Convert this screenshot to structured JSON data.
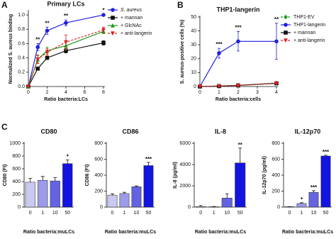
{
  "chart_data": [
    {
      "type": "line",
      "panel_label": "A",
      "title": "Primary LCs",
      "x_label": "Ratio bacteria:LCs",
      "y_label": "Normalized S. aureus binding",
      "x": [
        0,
        1,
        2,
        4,
        8
      ],
      "xlim": [
        0,
        8
      ],
      "xticks": [
        0,
        2,
        4,
        6,
        8
      ],
      "ylim": [
        0,
        1.05
      ],
      "yticks": [
        {
          "value": 0,
          "label": "0.0"
        },
        0.2,
        0.4,
        0.6,
        0.8,
        {
          "value": 1,
          "label": "1.0"
        }
      ],
      "significance": [
        null,
        "**",
        "**",
        "**",
        "*"
      ],
      "series": [
        {
          "name": "S. aureus",
          "color": "#1f1fe0",
          "marker": "circle",
          "dashed": false,
          "values": [
            0,
            0.55,
            0.78,
            0.89,
            1.0
          ],
          "errors": [
            0,
            0.05,
            0.05,
            0.04,
            0.01
          ]
        },
        {
          "name": "+ mannan",
          "color": "#111111",
          "marker": "square",
          "dashed": false,
          "values": [
            0,
            0.25,
            0.4,
            0.5,
            0.61
          ],
          "errors": [
            0,
            0.02,
            0.02,
            0.03,
            0.03
          ]
        },
        {
          "name": "+ GlcNAc",
          "color": "#1a9a1a",
          "marker": "triangle",
          "dashed": false,
          "values": [
            0,
            0.38,
            0.5,
            0.57,
            0.77
          ],
          "errors": [
            0,
            0.05,
            0.05,
            0.06,
            0.03
          ]
        },
        {
          "name": "+ anti-langerin",
          "color": "#e02020",
          "marker": "triangle-down",
          "dashed": true,
          "values": [
            0,
            0.38,
            0.48,
            0.62,
            0.79
          ],
          "errors": [
            0,
            0.06,
            0.05,
            0.1,
            0.04
          ]
        }
      ]
    },
    {
      "type": "line",
      "panel_label": "B",
      "title": "THP1-langerin",
      "x_label": "Ratio bacteria:cells",
      "y_label": "S. aureus-positive cells (%)",
      "x": [
        0,
        1,
        2,
        4
      ],
      "xlim": [
        0,
        4
      ],
      "xticks": [
        0,
        1,
        2,
        3,
        4
      ],
      "ylim": [
        0,
        50
      ],
      "yticks": [
        0,
        10,
        20,
        30,
        40,
        50
      ],
      "significance": [
        null,
        "***",
        "***",
        "**"
      ],
      "series": [
        {
          "name": "THP1-EV",
          "color": "#1a9a1a",
          "marker": "diamond",
          "dashed": true,
          "values": [
            0,
            0.4,
            0.9,
            2.6
          ],
          "errors": [
            0,
            0.2,
            0.3,
            0.4
          ]
        },
        {
          "name": "THP1-langerin",
          "color": "#1f1fe0",
          "marker": "circle",
          "dashed": false,
          "values": [
            0,
            24,
            32.5,
            32.5
          ],
          "errors": [
            0,
            3.5,
            7,
            13
          ]
        },
        {
          "name": "+ mannan",
          "color": "#111111",
          "marker": "square",
          "dashed": false,
          "values": [
            0,
            0.3,
            0.8,
            2.3
          ],
          "errors": [
            0,
            0.2,
            0.3,
            0.4
          ]
        },
        {
          "name": "+ anti-langerin",
          "color": "#e02020",
          "marker": "triangle-down",
          "dashed": true,
          "values": [
            0,
            0.3,
            0.7,
            2.4
          ],
          "errors": [
            0,
            0.2,
            0.3,
            0.4
          ]
        }
      ]
    },
    {
      "type": "bar",
      "panel_label": "C",
      "title": "CD80",
      "x_label": "Ratio bacteria:muLCs",
      "y_label": "CD80 (FI)",
      "categories": [
        "0",
        "1",
        "10",
        "50"
      ],
      "colors": [
        "#c9c9f2",
        "#9b9bea",
        "#6464e2",
        "#1414e0"
      ],
      "values": [
        390,
        420,
        410,
        680
      ],
      "errors": [
        60,
        60,
        50,
        60
      ],
      "significance": [
        null,
        null,
        null,
        "*"
      ],
      "ylim": [
        0,
        1000
      ],
      "yticks": [
        0,
        200,
        400,
        600,
        800,
        1000
      ]
    },
    {
      "type": "bar",
      "title": "CD86",
      "x_label": "Ratio bacteria:muLCs",
      "y_label": "CD86 (FI)",
      "categories": [
        "0",
        "1",
        "10",
        "50"
      ],
      "colors": [
        "#c9c9f2",
        "#9b9bea",
        "#6464e2",
        "#1414e0"
      ],
      "values": [
        150,
        170,
        255,
        520
      ],
      "errors": [
        15,
        15,
        10,
        40
      ],
      "significance": [
        null,
        null,
        null,
        "***"
      ],
      "ylim": [
        0,
        800
      ],
      "yticks": [
        0,
        200,
        400,
        600,
        800
      ]
    },
    {
      "type": "bar",
      "title": "IL-8",
      "x_label": "Ratio bacteria:muLCs",
      "y_label": "IL-8 (pg/ml)",
      "categories": [
        "0",
        "1",
        "10",
        "50"
      ],
      "colors": [
        "#c9c9f2",
        "#9b9bea",
        "#6464e2",
        "#1414e0"
      ],
      "values": [
        50,
        30,
        850,
        4150
      ],
      "errors": [
        100,
        30,
        400,
        1400
      ],
      "significance": [
        null,
        null,
        null,
        "**"
      ],
      "ylim": [
        0,
        6000
      ],
      "yticks": [
        0,
        2000,
        4000,
        6000
      ]
    },
    {
      "type": "bar",
      "title": "IL-12p70",
      "x_label": "Ratio bacteria:muLCs",
      "y_label": "IL-12p70 (pg/ml)",
      "categories": [
        "0",
        "1",
        "10",
        "50"
      ],
      "colors": [
        "#c9c9f2",
        "#9b9bea",
        "#6464e2",
        "#1414e0"
      ],
      "values": [
        5,
        45,
        185,
        640
      ],
      "errors": [
        2,
        10,
        20,
        10
      ],
      "significance": [
        null,
        "*",
        "***",
        "***"
      ],
      "ylim": [
        0,
        800
      ],
      "yticks": [
        0,
        200,
        400,
        600,
        800
      ]
    }
  ]
}
